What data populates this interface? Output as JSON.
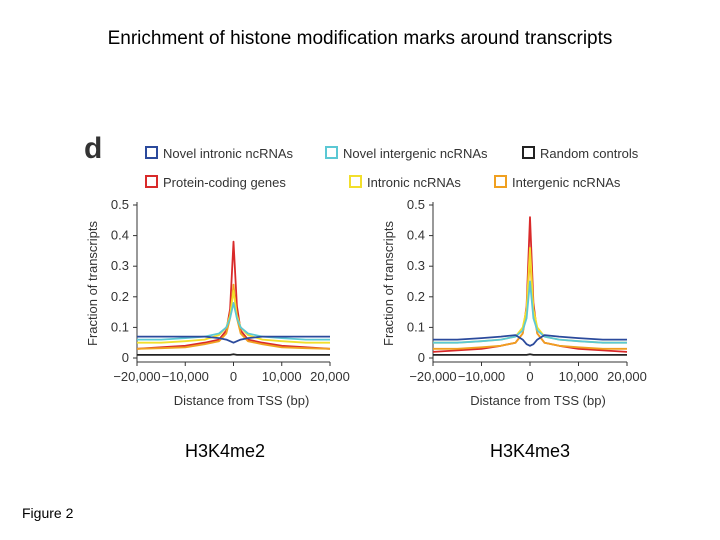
{
  "title": "Enrichment of histone modification marks around transcripts",
  "panel_letter": "d",
  "footer": "Figure 2",
  "legend": [
    {
      "label": "Novel intronic ncRNAs",
      "color": "#2b4a9c"
    },
    {
      "label": "Novel intergenic ncRNAs",
      "color": "#5bc8d4"
    },
    {
      "label": "Random controls",
      "color": "#222222"
    },
    {
      "label": "Protein-coding genes",
      "color": "#d92a2a"
    },
    {
      "label": "Intronic ncRNAs",
      "color": "#f2df2c"
    },
    {
      "label": "Intergenic ncRNAs",
      "color": "#f0a020"
    }
  ],
  "chart_data": [
    {
      "type": "line",
      "caption": "H3K4me2",
      "xlabel": "Distance from TSS (bp)",
      "ylabel": "Fraction of transcripts",
      "xlim": [
        -20000,
        20000
      ],
      "ylim": [
        0,
        0.5
      ],
      "x_ticks": [
        "−20,000",
        "−10,000",
        "0",
        "10,000",
        "20,000"
      ],
      "y_ticks": [
        "0",
        "0.1",
        "0.2",
        "0.3",
        "0.4",
        "0.5"
      ],
      "x": [
        -20000,
        -15000,
        -10000,
        -6000,
        -3000,
        -1500,
        -700,
        0,
        700,
        1500,
        3000,
        6000,
        10000,
        15000,
        20000
      ],
      "series": [
        {
          "name": "Protein-coding genes",
          "values": [
            0.03,
            0.035,
            0.04,
            0.05,
            0.06,
            0.09,
            0.16,
            0.38,
            0.17,
            0.09,
            0.06,
            0.05,
            0.04,
            0.035,
            0.03
          ]
        },
        {
          "name": "Intergenic ncRNAs",
          "values": [
            0.03,
            0.032,
            0.035,
            0.045,
            0.055,
            0.08,
            0.13,
            0.24,
            0.13,
            0.08,
            0.055,
            0.045,
            0.035,
            0.032,
            0.03
          ]
        },
        {
          "name": "Intronic ncRNAs",
          "values": [
            0.05,
            0.05,
            0.055,
            0.06,
            0.075,
            0.1,
            0.14,
            0.22,
            0.14,
            0.1,
            0.075,
            0.06,
            0.055,
            0.05,
            0.05
          ]
        },
        {
          "name": "Novel intergenic ncRNAs",
          "values": [
            0.06,
            0.06,
            0.065,
            0.07,
            0.08,
            0.1,
            0.13,
            0.18,
            0.13,
            0.1,
            0.08,
            0.07,
            0.065,
            0.06,
            0.06
          ]
        },
        {
          "name": "Novel intronic ncRNAs",
          "values": [
            0.07,
            0.07,
            0.07,
            0.07,
            0.065,
            0.06,
            0.055,
            0.05,
            0.055,
            0.06,
            0.065,
            0.07,
            0.07,
            0.07,
            0.07
          ]
        },
        {
          "name": "Random controls",
          "values": [
            0.01,
            0.01,
            0.01,
            0.01,
            0.01,
            0.01,
            0.01,
            0.012,
            0.01,
            0.01,
            0.01,
            0.01,
            0.01,
            0.01,
            0.01
          ]
        }
      ]
    },
    {
      "type": "line",
      "caption": "H3K4me3",
      "xlabel": "Distance from TSS (bp)",
      "ylabel": "Fraction of transcripts",
      "xlim": [
        -20000,
        20000
      ],
      "ylim": [
        0,
        0.5
      ],
      "x_ticks": [
        "−20,000",
        "−10,000",
        "0",
        "10,000",
        "20,000"
      ],
      "y_ticks": [
        "0",
        "0.1",
        "0.2",
        "0.3",
        "0.4",
        "0.5"
      ],
      "x": [
        -20000,
        -15000,
        -10000,
        -6000,
        -3000,
        -1500,
        -700,
        0,
        700,
        1500,
        3000,
        6000,
        10000,
        15000,
        20000
      ],
      "series": [
        {
          "name": "Protein-coding genes",
          "values": [
            0.02,
            0.025,
            0.03,
            0.04,
            0.05,
            0.08,
            0.17,
            0.46,
            0.18,
            0.08,
            0.05,
            0.04,
            0.03,
            0.025,
            0.02
          ]
        },
        {
          "name": "Intergenic ncRNAs",
          "values": [
            0.03,
            0.03,
            0.035,
            0.04,
            0.05,
            0.08,
            0.15,
            0.33,
            0.15,
            0.08,
            0.05,
            0.04,
            0.035,
            0.03,
            0.03
          ]
        },
        {
          "name": "Intronic ncRNAs",
          "values": [
            0.05,
            0.05,
            0.055,
            0.06,
            0.07,
            0.1,
            0.16,
            0.36,
            0.16,
            0.1,
            0.07,
            0.06,
            0.055,
            0.05,
            0.05
          ]
        },
        {
          "name": "Novel intergenic ncRNAs",
          "values": [
            0.05,
            0.05,
            0.055,
            0.06,
            0.07,
            0.09,
            0.13,
            0.25,
            0.13,
            0.09,
            0.07,
            0.06,
            0.055,
            0.05,
            0.05
          ]
        },
        {
          "name": "Novel intronic ncRNAs",
          "values": [
            0.06,
            0.06,
            0.065,
            0.07,
            0.075,
            0.06,
            0.045,
            0.04,
            0.045,
            0.06,
            0.075,
            0.07,
            0.065,
            0.06,
            0.06
          ]
        },
        {
          "name": "Random controls",
          "values": [
            0.01,
            0.01,
            0.01,
            0.01,
            0.01,
            0.01,
            0.01,
            0.012,
            0.01,
            0.01,
            0.01,
            0.01,
            0.01,
            0.01,
            0.01
          ]
        }
      ]
    }
  ]
}
